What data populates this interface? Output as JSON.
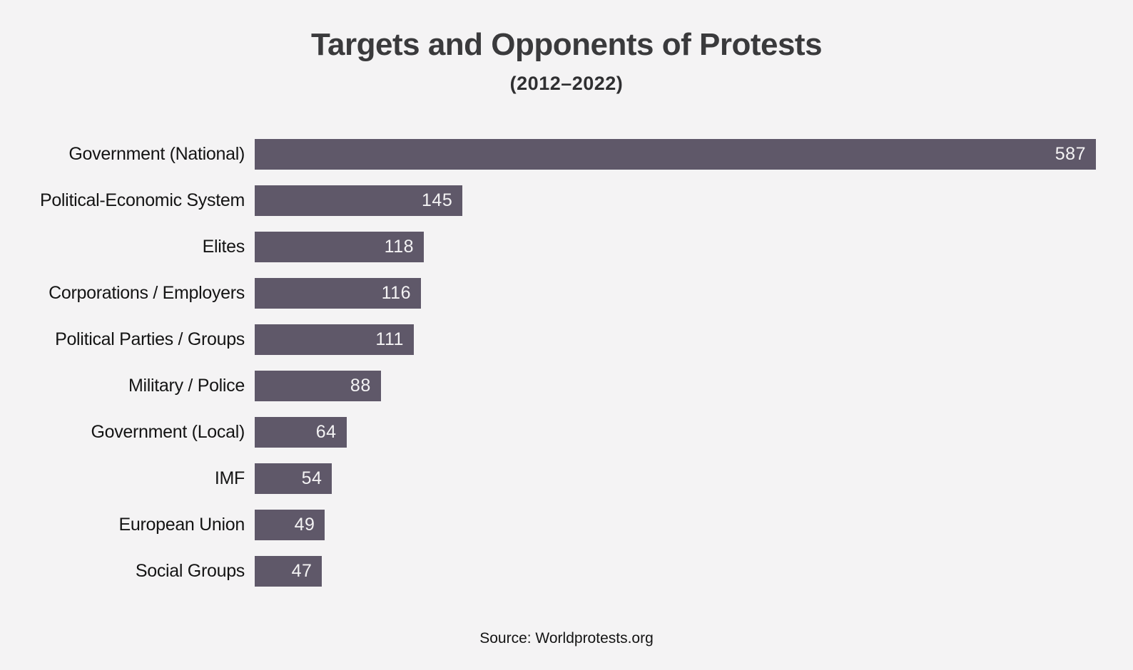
{
  "chart_data": {
    "type": "bar",
    "orientation": "horizontal",
    "title": "Targets and Opponents of Protests",
    "subtitle": "(2012–2022)",
    "source": "Source: Worldprotests.org",
    "categories": [
      "Government (National)",
      "Political-Economic System",
      "Elites",
      "Corporations / Employers",
      "Political Parties / Groups",
      "Military / Police",
      "Government (Local)",
      "IMF",
      "European Union",
      "Social Groups"
    ],
    "values": [
      587,
      145,
      118,
      116,
      111,
      88,
      64,
      54,
      49,
      47
    ],
    "xlabel": "",
    "ylabel": "",
    "xlim": [
      0,
      587
    ],
    "grid": false,
    "legend": false,
    "value_labels": "inside-end",
    "colors": {
      "bar": "#5f5869",
      "background": "#f4f3f4",
      "title": "#3a3a3c",
      "category_label": "#141414",
      "value_label": "#f4f3f4"
    }
  }
}
